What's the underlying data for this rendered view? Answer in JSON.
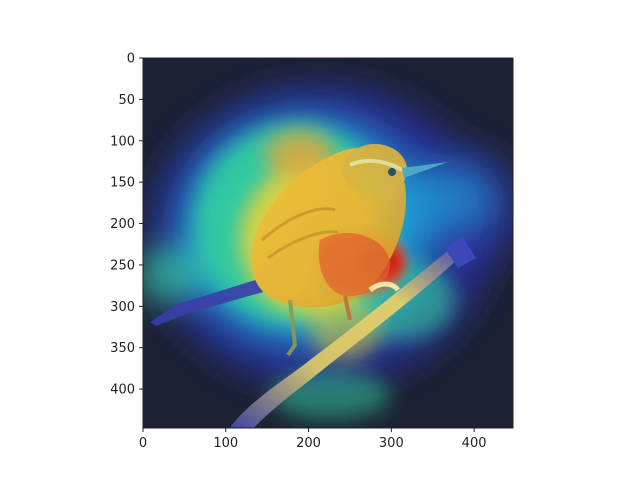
{
  "figure": {
    "image_description_name": "wren-saliency-heatmap",
    "colormap": "jet",
    "axes": {
      "x": {
        "min": 0,
        "max": 447,
        "ticks": [
          0,
          100,
          200,
          300,
          400
        ],
        "tick_labels": [
          "0",
          "100",
          "200",
          "300",
          "400"
        ]
      },
      "y": {
        "min": 0,
        "max": 447,
        "ticks": [
          0,
          50,
          100,
          150,
          200,
          250,
          300,
          350,
          400
        ],
        "tick_labels": [
          "0",
          "50",
          "100",
          "150",
          "200",
          "250",
          "300",
          "350",
          "400"
        ],
        "inverted": true
      }
    },
    "colors": {
      "background_dark": "#1c2232",
      "cold": "#2a2f9a",
      "cool": "#1f9fd6",
      "mid": "#34d29a",
      "warm": "#e9d33a",
      "hot": "#e8542d",
      "peak": "#d01d1d",
      "axis": "#222222"
    }
  }
}
